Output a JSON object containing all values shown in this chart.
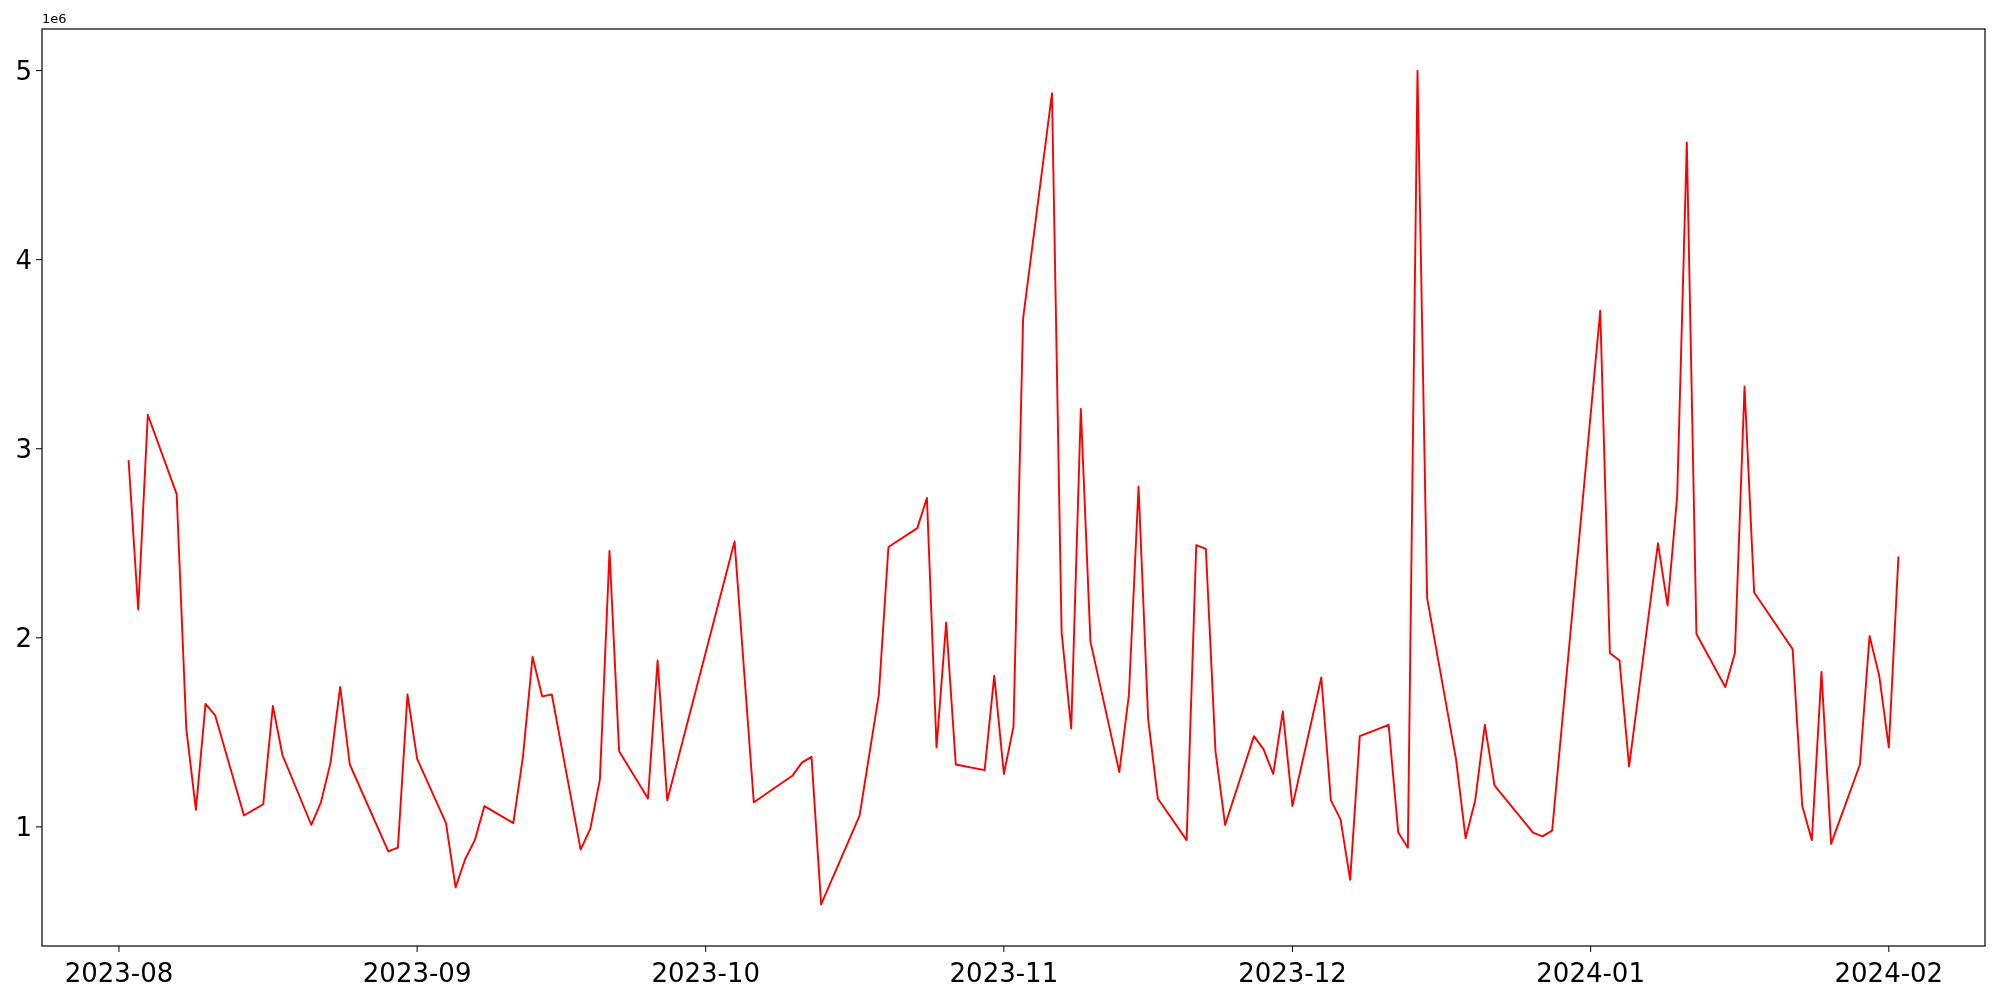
{
  "chart_data": {
    "type": "line",
    "annotations": [
      "1e6"
    ],
    "x": [
      "2023-08-02",
      "2023-08-03",
      "2023-08-04",
      "2023-08-07",
      "2023-08-08",
      "2023-08-09",
      "2023-08-10",
      "2023-08-11",
      "2023-08-14",
      "2023-08-16",
      "2023-08-17",
      "2023-08-18",
      "2023-08-21",
      "2023-08-22",
      "2023-08-23",
      "2023-08-24",
      "2023-08-25",
      "2023-08-29",
      "2023-08-30",
      "2023-08-31",
      "2023-09-01",
      "2023-09-04",
      "2023-09-05",
      "2023-09-06",
      "2023-09-07",
      "2023-09-08",
      "2023-09-11",
      "2023-09-12",
      "2023-09-13",
      "2023-09-14",
      "2023-09-15",
      "2023-09-18",
      "2023-09-19",
      "2023-09-20",
      "2023-09-21",
      "2023-09-22",
      "2023-09-25",
      "2023-09-26",
      "2023-09-27",
      "2023-10-04",
      "2023-10-06",
      "2023-10-10",
      "2023-10-11",
      "2023-10-12",
      "2023-10-13",
      "2023-10-17",
      "2023-10-19",
      "2023-10-20",
      "2023-10-23",
      "2023-10-24",
      "2023-10-25",
      "2023-10-26",
      "2023-10-27",
      "2023-10-30",
      "2023-10-31",
      "2023-11-01",
      "2023-11-02",
      "2023-11-03",
      "2023-11-06",
      "2023-11-07",
      "2023-11-08",
      "2023-11-09",
      "2023-11-10",
      "2023-11-13",
      "2023-11-14",
      "2023-11-15",
      "2023-11-16",
      "2023-11-17",
      "2023-11-20",
      "2023-11-21",
      "2023-11-22",
      "2023-11-23",
      "2023-11-24",
      "2023-11-27",
      "2023-11-28",
      "2023-11-29",
      "2023-11-30",
      "2023-12-01",
      "2023-12-04",
      "2023-12-05",
      "2023-12-06",
      "2023-12-07",
      "2023-12-08",
      "2023-12-11",
      "2023-12-12",
      "2023-12-13",
      "2023-12-14",
      "2023-12-15",
      "2023-12-18",
      "2023-12-19",
      "2023-12-20",
      "2023-12-21",
      "2023-12-22",
      "2023-12-26",
      "2023-12-27",
      "2023-12-28",
      "2024-01-02",
      "2024-01-03",
      "2024-01-04",
      "2024-01-05",
      "2024-01-08",
      "2024-01-09",
      "2024-01-10",
      "2024-01-11",
      "2024-01-12",
      "2024-01-15",
      "2024-01-16",
      "2024-01-17",
      "2024-01-18",
      "2024-01-22",
      "2024-01-23",
      "2024-01-24",
      "2024-01-25",
      "2024-01-26",
      "2024-01-29",
      "2024-01-30",
      "2024-01-31",
      "2024-02-01",
      "2024-02-02"
    ],
    "series": [
      {
        "color": "#ff0000",
        "values": [
          2.94,
          2.15,
          3.18,
          2.76,
          1.52,
          1.09,
          1.65,
          1.59,
          1.06,
          1.12,
          1.64,
          1.38,
          1.01,
          1.13,
          1.34,
          1.74,
          1.33,
          0.87,
          0.89,
          1.7,
          1.36,
          1.02,
          0.68,
          0.83,
          0.93,
          1.11,
          1.02,
          1.37,
          1.9,
          1.69,
          1.7,
          0.88,
          0.99,
          1.25,
          2.46,
          1.4,
          1.15,
          1.88,
          1.14,
          2.51,
          1.13,
          1.27,
          1.34,
          1.37,
          0.59,
          1.06,
          1.7,
          2.48,
          2.58,
          2.74,
          1.42,
          2.08,
          1.33,
          1.3,
          1.8,
          1.28,
          1.53,
          3.69,
          4.88,
          2.03,
          1.52,
          3.21,
          1.98,
          1.29,
          1.7,
          2.8,
          1.57,
          1.15,
          0.93,
          2.49,
          2.47,
          1.4,
          1.01,
          1.48,
          1.41,
          1.28,
          1.61,
          1.11,
          1.79,
          1.14,
          1.04,
          0.72,
          1.48,
          1.54,
          0.97,
          0.89,
          5.0,
          2.21,
          1.36,
          0.94,
          1.14,
          1.54,
          1.22,
          0.97,
          0.95,
          0.98,
          3.73,
          1.92,
          1.88,
          1.32,
          2.5,
          2.17,
          2.75,
          4.62,
          2.02,
          1.74,
          1.92,
          3.33,
          2.24,
          1.94,
          1.11,
          0.93,
          1.82,
          0.91,
          1.33,
          2.01,
          1.8,
          1.42,
          2.43
        ]
      }
    ],
    "xlim": [
      "2023-07-24",
      "2024-02-11"
    ],
    "xticks": [
      {
        "value": "2023-08-01",
        "label": "2023-08"
      },
      {
        "value": "2023-09-01",
        "label": "2023-09"
      },
      {
        "value": "2023-10-01",
        "label": "2023-10"
      },
      {
        "value": "2023-11-01",
        "label": "2023-11"
      },
      {
        "value": "2023-12-01",
        "label": "2023-12"
      },
      {
        "value": "2024-01-01",
        "label": "2024-01"
      },
      {
        "value": "2024-02-01",
        "label": "2024-02"
      }
    ],
    "ylim": [
      0.37,
      5.22
    ],
    "yticks": [
      1,
      2,
      3,
      4,
      5
    ],
    "grid": false,
    "marker": "none",
    "line_style": "solid"
  }
}
